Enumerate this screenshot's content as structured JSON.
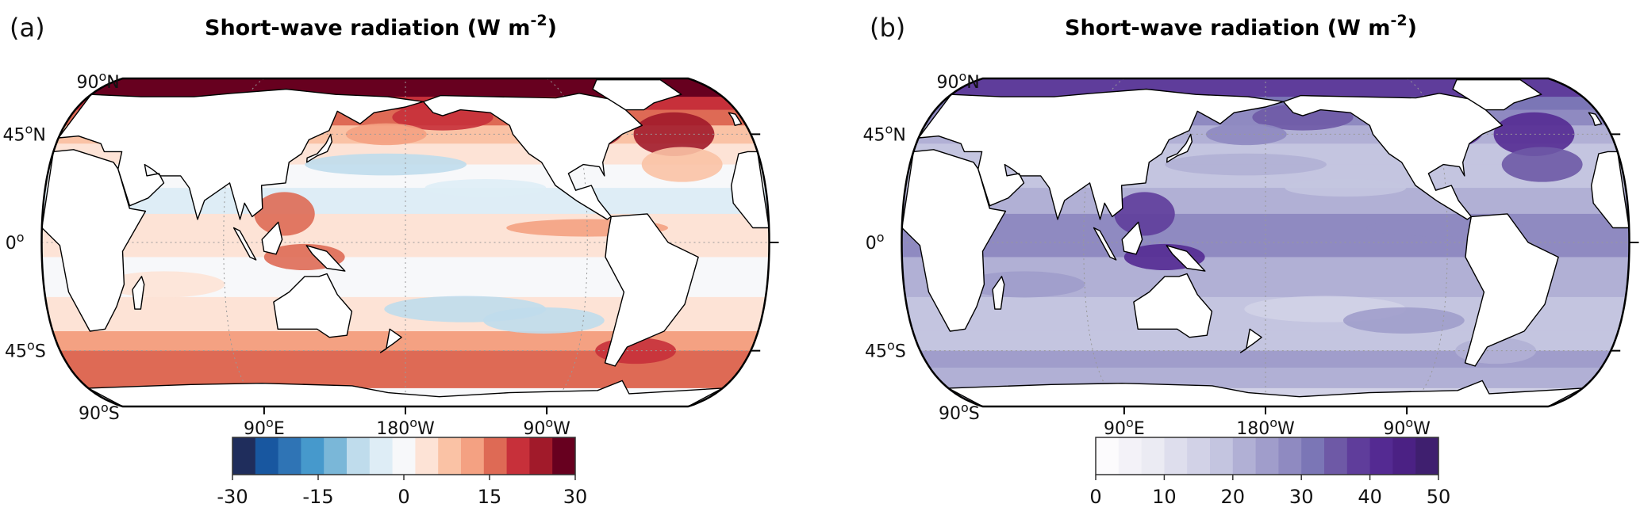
{
  "panels": [
    {
      "letter": "(a)",
      "title": {
        "main": "Short-wave radiation (W m",
        "exp": "-2",
        "end": ")"
      },
      "lat_labels": [
        {
          "value": "90",
          "deg": "o",
          "hemi": "N"
        },
        {
          "value": "45",
          "deg": "o",
          "hemi": "N"
        },
        {
          "value": "0",
          "deg": "o",
          "hemi": ""
        },
        {
          "value": "45",
          "deg": "o",
          "hemi": "S"
        },
        {
          "value": "90",
          "deg": "o",
          "hemi": "S"
        }
      ],
      "lon_labels": [
        {
          "value": "90",
          "deg": "o",
          "hemi": "E"
        },
        {
          "value": "180",
          "deg": "o",
          "hemi": "W"
        },
        {
          "value": "90",
          "deg": "o",
          "hemi": "W"
        }
      ],
      "colorbar": {
        "min": -30,
        "max": 30,
        "ticks": [
          "-30",
          "-15",
          "0",
          "15",
          "30"
        ],
        "colors": [
          "#1f2d5c",
          "#1857a0",
          "#2f74b5",
          "#4699cc",
          "#7ab7d8",
          "#bfdcec",
          "#deedf6",
          "#f7f8fa",
          "#fde3d6",
          "#fac2a5",
          "#f4a182",
          "#de6a55",
          "#c7303a",
          "#a11a2a",
          "#67001f"
        ]
      }
    },
    {
      "letter": "(b)",
      "title": {
        "main": "Short-wave radiation (W m",
        "exp": "-2",
        "end": ")"
      },
      "lat_labels": [
        {
          "value": "90",
          "deg": "o",
          "hemi": "N"
        },
        {
          "value": "45",
          "deg": "o",
          "hemi": "N"
        },
        {
          "value": "0",
          "deg": "o",
          "hemi": ""
        },
        {
          "value": "45",
          "deg": "o",
          "hemi": "S"
        },
        {
          "value": "90",
          "deg": "o",
          "hemi": "S"
        }
      ],
      "lon_labels": [
        {
          "value": "90",
          "deg": "o",
          "hemi": "E"
        },
        {
          "value": "180",
          "deg": "o",
          "hemi": "W"
        },
        {
          "value": "90",
          "deg": "o",
          "hemi": "W"
        }
      ],
      "colorbar": {
        "min": 0,
        "max": 50,
        "ticks": [
          "0",
          "10",
          "20",
          "30",
          "40",
          "50"
        ],
        "colors": [
          "#fcfbfd",
          "#f3f2f8",
          "#ebebf3",
          "#dedeed",
          "#d2d2e7",
          "#c4c5e0",
          "#b1b0d5",
          "#a09dcb",
          "#8f8ac1",
          "#7b76b6",
          "#6e59a6",
          "#5f3d9b",
          "#542a92",
          "#4b2184",
          "#3f1f6f"
        ]
      }
    }
  ]
}
